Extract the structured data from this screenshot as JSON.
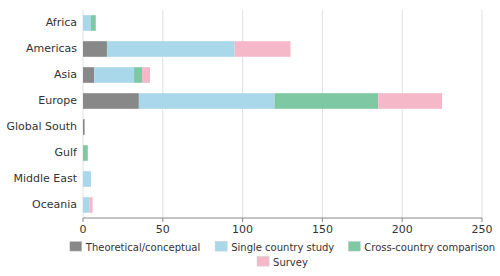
{
  "chart_data": {
    "type": "bar",
    "orientation": "horizontal",
    "stacked": true,
    "categories": [
      "Africa",
      "Americas",
      "Asia",
      "Europe",
      "Global South",
      "Gulf",
      "Middle East",
      "Oceania"
    ],
    "series": [
      {
        "name": "Theoretical/conceptual",
        "color": "#888888",
        "values": [
          0,
          15,
          7,
          35,
          1,
          0,
          0,
          0
        ]
      },
      {
        "name": "Single country study",
        "color": "#a8d8ea",
        "values": [
          5,
          80,
          25,
          85,
          0,
          0,
          5,
          4
        ]
      },
      {
        "name": "Cross-country comparison",
        "color": "#7ec8a4",
        "values": [
          3,
          0,
          5,
          65,
          0,
          3,
          0,
          0
        ]
      },
      {
        "name": "Survey",
        "color": "#f4b8c8",
        "values": [
          0,
          35,
          5,
          40,
          0,
          0,
          0,
          2
        ]
      }
    ],
    "xlim": [
      0,
      250
    ],
    "xticks": [
      0,
      50,
      100,
      150,
      200,
      250
    ],
    "grid": true,
    "legend": "bottom"
  }
}
